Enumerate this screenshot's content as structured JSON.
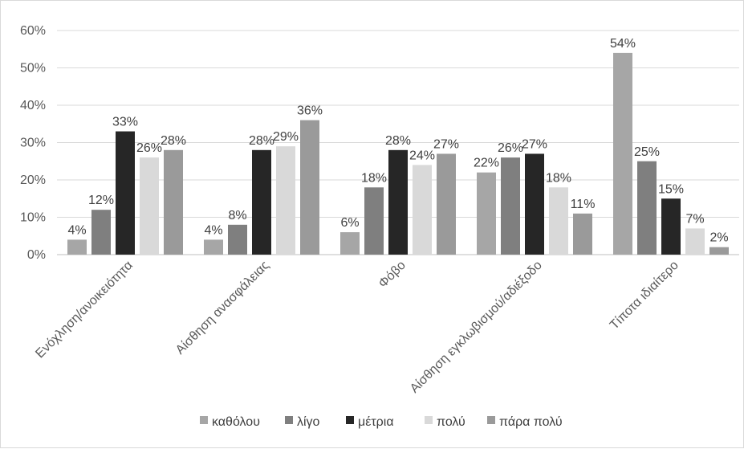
{
  "chart_data": {
    "type": "bar",
    "title": "",
    "xlabel": "",
    "ylabel": "",
    "ylim": [
      0,
      0.6
    ],
    "yticks": [
      "0%",
      "10%",
      "20%",
      "30%",
      "40%",
      "50%",
      "60%"
    ],
    "grid": true,
    "legend_position": "bottom",
    "categories": [
      "Ενόχληση/ανοικειότητα",
      "Αίσθηση ανασφάλειας",
      "Φόβο",
      "Αίσθηση εγκλωβισμού/αδιέξοδο",
      "Τίποτα ιδιαίτερο"
    ],
    "series": [
      {
        "name": "καθόλου",
        "color": "#a6a6a6",
        "values": [
          0.04,
          0.04,
          0.06,
          0.22,
          0.54
        ],
        "labels": [
          "4%",
          "4%",
          "6%",
          "22%",
          "54%"
        ]
      },
      {
        "name": "λίγο",
        "color": "#7f7f7f",
        "values": [
          0.12,
          0.08,
          0.18,
          0.26,
          0.25
        ],
        "labels": [
          "12%",
          "8%",
          "18%",
          "26%",
          "25%"
        ]
      },
      {
        "name": "μέτρια",
        "color": "#262626",
        "values": [
          0.33,
          0.28,
          0.28,
          0.27,
          0.15
        ],
        "labels": [
          "33%",
          "28%",
          "28%",
          "27%",
          "15%"
        ]
      },
      {
        "name": "πολύ",
        "color": "#d9d9d9",
        "values": [
          0.26,
          0.29,
          0.24,
          0.18,
          0.07
        ],
        "labels": [
          "26%",
          "29%",
          "24%",
          "18%",
          "7%"
        ]
      },
      {
        "name": "πάρα πολύ",
        "color": "#9a9a9a",
        "values": [
          0.28,
          0.36,
          0.27,
          0.11,
          0.02
        ],
        "labels": [
          "28%",
          "36%",
          "27%",
          "11%",
          "2%"
        ]
      }
    ]
  }
}
